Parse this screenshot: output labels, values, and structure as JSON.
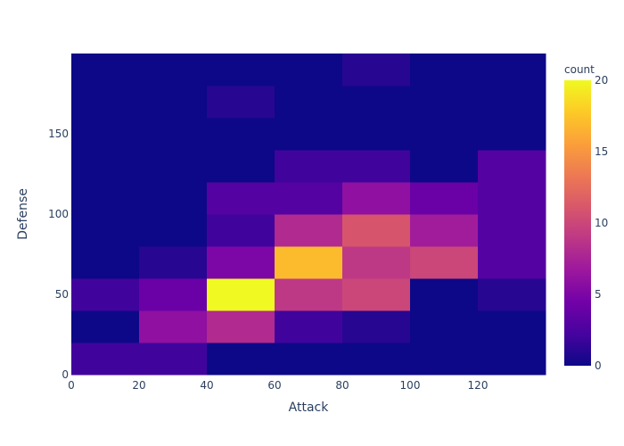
{
  "chart_data": {
    "type": "heatmap",
    "title": "",
    "xlabel": "Attack",
    "ylabel": "Defense",
    "x_bins": [
      [
        0,
        20
      ],
      [
        20,
        40
      ],
      [
        40,
        60
      ],
      [
        60,
        80
      ],
      [
        80,
        100
      ],
      [
        100,
        120
      ],
      [
        120,
        140
      ]
    ],
    "y_bins": [
      [
        0,
        20
      ],
      [
        20,
        40
      ],
      [
        40,
        60
      ],
      [
        60,
        80
      ],
      [
        80,
        100
      ],
      [
        100,
        120
      ],
      [
        120,
        140
      ],
      [
        140,
        160
      ],
      [
        160,
        180
      ],
      [
        180,
        200
      ]
    ],
    "xlim": [
      0,
      140
    ],
    "ylim": [
      0,
      200
    ],
    "x_ticks": [
      0,
      20,
      40,
      60,
      80,
      100,
      120
    ],
    "x_tick_labels": [
      "0",
      "20",
      "40",
      "60",
      "80",
      "100",
      "120"
    ],
    "y_ticks": [
      0,
      50,
      100,
      150
    ],
    "y_tick_labels": [
      "0",
      "50",
      "100",
      "150"
    ],
    "z": [
      [
        2,
        2,
        0,
        0,
        0,
        0,
        0
      ],
      [
        0,
        6,
        8,
        2,
        1,
        0,
        0
      ],
      [
        2,
        4,
        20,
        9,
        10,
        0,
        1
      ],
      [
        0,
        1,
        5,
        17,
        9,
        10,
        3
      ],
      [
        0,
        0,
        2,
        8,
        11,
        7,
        3
      ],
      [
        0,
        0,
        3,
        3,
        6,
        4,
        3
      ],
      [
        0,
        0,
        0,
        2,
        2,
        0,
        3
      ],
      [
        0,
        0,
        0,
        0,
        0,
        0,
        0
      ],
      [
        0,
        0,
        1,
        0,
        0,
        0,
        0
      ],
      [
        0,
        0,
        0,
        0,
        1,
        0,
        0
      ]
    ],
    "colorbar": {
      "title": "count",
      "range": [
        0,
        20
      ],
      "ticks": [
        0,
        5,
        10,
        15,
        20
      ],
      "tick_labels": [
        "0",
        "5",
        "10",
        "15",
        "20"
      ]
    },
    "colorscale": [
      "#0d0887",
      "#46039f",
      "#7201a8",
      "#9c179e",
      "#bd3786",
      "#d8576b",
      "#ed7953",
      "#fb9f3a",
      "#fdca26",
      "#f0f921"
    ],
    "grid": false
  }
}
